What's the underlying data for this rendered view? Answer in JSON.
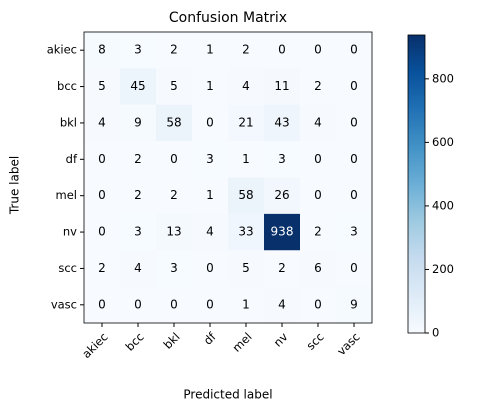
{
  "chart_data": {
    "type": "heatmap",
    "title": "Confusion Matrix",
    "x_label": "Predicted label",
    "y_label": "True label",
    "x_categories": [
      "akiec",
      "bcc",
      "bkl",
      "df",
      "mel",
      "nv",
      "scc",
      "vasc"
    ],
    "y_categories": [
      "akiec",
      "bcc",
      "bkl",
      "df",
      "mel",
      "nv",
      "scc",
      "vasc"
    ],
    "values": [
      [
        8,
        3,
        2,
        1,
        2,
        0,
        0,
        0
      ],
      [
        5,
        45,
        5,
        1,
        4,
        11,
        2,
        0
      ],
      [
        4,
        9,
        58,
        0,
        21,
        43,
        4,
        0
      ],
      [
        0,
        2,
        0,
        3,
        1,
        3,
        0,
        0
      ],
      [
        0,
        2,
        2,
        1,
        58,
        26,
        0,
        0
      ],
      [
        0,
        3,
        13,
        4,
        33,
        938,
        2,
        3
      ],
      [
        2,
        4,
        3,
        0,
        5,
        2,
        6,
        0
      ],
      [
        0,
        0,
        0,
        0,
        1,
        4,
        0,
        9
      ]
    ],
    "colorscale": [
      "#f7fbff",
      "#deebf7",
      "#c6dbef",
      "#9ecae1",
      "#6baed6",
      "#4292c6",
      "#2171b5",
      "#08519c",
      "#08306b"
    ],
    "colorbar_lim": [
      0,
      938
    ],
    "colorbar_ticks": [
      0,
      200,
      400,
      600,
      800
    ]
  }
}
